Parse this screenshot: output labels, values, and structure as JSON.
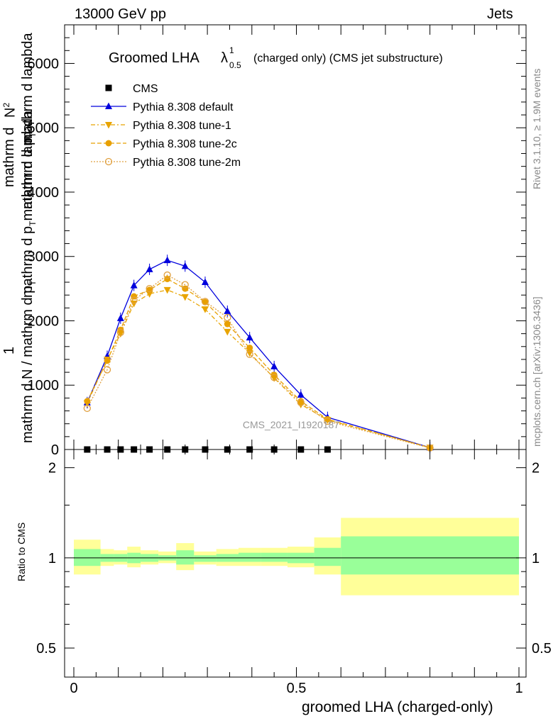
{
  "header": {
    "left": "13000 GeV pp",
    "right": "Jets"
  },
  "side": {
    "rivet": "Rivet 3.1.10, ≥ 1.9M events",
    "mcplots": "mcplots.cern.ch [arXiv:1306.3436]"
  },
  "chart_data": {
    "type": "line",
    "title_main": "Groomed LHA",
    "title_symbol": "λ",
    "title_sup": "1",
    "title_sub": "0.5",
    "title_tail": "(charged only) (CMS jet substructure)",
    "watermark": "CMS_2021_I1920187",
    "xlabel": "groomed LHA (charged-only)",
    "ylabel_num_1": "mathrm d",
    "ylabel_num_2": "N",
    "ylabel_num_3": "2",
    "ylabel_num_4": "mathrm d p",
    "ylabel_num_5": "T",
    "ylabel_num_6": "mathrm d lambda",
    "ylabel_den_1": "1",
    "ylabel_den_2": "mathrm d N / mathrm d p",
    "ylabel_den_3": "T",
    "ylabel_den_4": "mathrm d p",
    "ylabel_den_5": "T",
    "ylabel_den_6": "mathrm d lambda",
    "ratio_ylabel": "Ratio to CMS",
    "xlim": [
      0,
      1
    ],
    "ylim": [
      0,
      6600
    ],
    "ratio_ylim": [
      0.4,
      2.3
    ],
    "ratio_log": true,
    "x_ticks": [
      0,
      0.5,
      1
    ],
    "x_tick_labels": [
      "0",
      "0.5",
      "1"
    ],
    "y_ticks": [
      0,
      1000,
      2000,
      3000,
      4000,
      5000,
      6000
    ],
    "y_tick_labels": [
      "0",
      "1000",
      "2000",
      "3000",
      "4000",
      "5000",
      "6000"
    ],
    "ratio_ticks": [
      0.5,
      1,
      2
    ],
    "ratio_tick_labels": [
      "0.5",
      "1",
      "2"
    ],
    "legend_position": "top-left",
    "x": [
      0.03,
      0.075,
      0.105,
      0.135,
      0.17,
      0.21,
      0.25,
      0.295,
      0.345,
      0.395,
      0.45,
      0.51,
      0.57,
      0.8
    ],
    "bin_edges": [
      0.0,
      0.06,
      0.09,
      0.12,
      0.15,
      0.19,
      0.23,
      0.27,
      0.32,
      0.37,
      0.42,
      0.48,
      0.54,
      0.6,
      1.0
    ],
    "cms_y": [
      0,
      0,
      0,
      0,
      0,
      0,
      0,
      0,
      0,
      0,
      0,
      0,
      0
    ],
    "cms_x": [
      0.03,
      0.075,
      0.105,
      0.135,
      0.17,
      0.21,
      0.25,
      0.295,
      0.345,
      0.395,
      0.45,
      0.51,
      0.57
    ],
    "series": [
      {
        "name": "CMS",
        "color": "#000000",
        "marker": "square"
      },
      {
        "name": "Pythia 8.308 default",
        "color": "#0000dd",
        "marker": "triangle-up",
        "dash": "solid",
        "values": [
          730,
          1450,
          2040,
          2550,
          2800,
          2940,
          2850,
          2600,
          2150,
          1740,
          1290,
          850,
          500,
          30
        ]
      },
      {
        "name": "Pythia 8.308 tune-1",
        "color": "#e8a400",
        "marker": "triangle-down",
        "dash": "6,3,2,3",
        "values": [
          720,
          1400,
          1800,
          2270,
          2420,
          2480,
          2370,
          2180,
          1830,
          1500,
          1110,
          700,
          460,
          30
        ]
      },
      {
        "name": "Pythia 8.308 tune-2c",
        "color": "#e8a000",
        "marker": "circle",
        "dash": "6,3",
        "values": [
          750,
          1380,
          1860,
          2380,
          2480,
          2650,
          2500,
          2290,
          1950,
          1580,
          1160,
          750,
          470,
          28
        ]
      },
      {
        "name": "Pythia 8.308 tune-2m",
        "color": "#e0a040",
        "marker": "circle-open",
        "dash": "2,2",
        "values": [
          640,
          1240,
          1820,
          2320,
          2500,
          2710,
          2560,
          2300,
          2050,
          1480,
          1120,
          730,
          440,
          25
        ]
      }
    ],
    "ratio_band_yellow": [
      [
        0.88,
        1.15
      ],
      [
        0.94,
        1.07
      ],
      [
        0.95,
        1.06
      ],
      [
        0.93,
        1.09
      ],
      [
        0.95,
        1.06
      ],
      [
        0.96,
        1.05
      ],
      [
        0.91,
        1.12
      ],
      [
        0.95,
        1.05
      ],
      [
        0.94,
        1.07
      ],
      [
        0.94,
        1.08
      ],
      [
        0.94,
        1.08
      ],
      [
        0.93,
        1.09
      ],
      [
        0.88,
        1.17
      ],
      [
        0.75,
        1.36
      ]
    ],
    "ratio_band_green": [
      [
        0.94,
        1.07
      ],
      [
        0.97,
        1.03
      ],
      [
        0.97,
        1.03
      ],
      [
        0.96,
        1.04
      ],
      [
        0.97,
        1.03
      ],
      [
        0.98,
        1.02
      ],
      [
        0.95,
        1.06
      ],
      [
        0.97,
        1.02
      ],
      [
        0.97,
        1.03
      ],
      [
        0.97,
        1.04
      ],
      [
        0.97,
        1.04
      ],
      [
        0.96,
        1.04
      ],
      [
        0.94,
        1.08
      ],
      [
        0.88,
        1.18
      ]
    ]
  }
}
